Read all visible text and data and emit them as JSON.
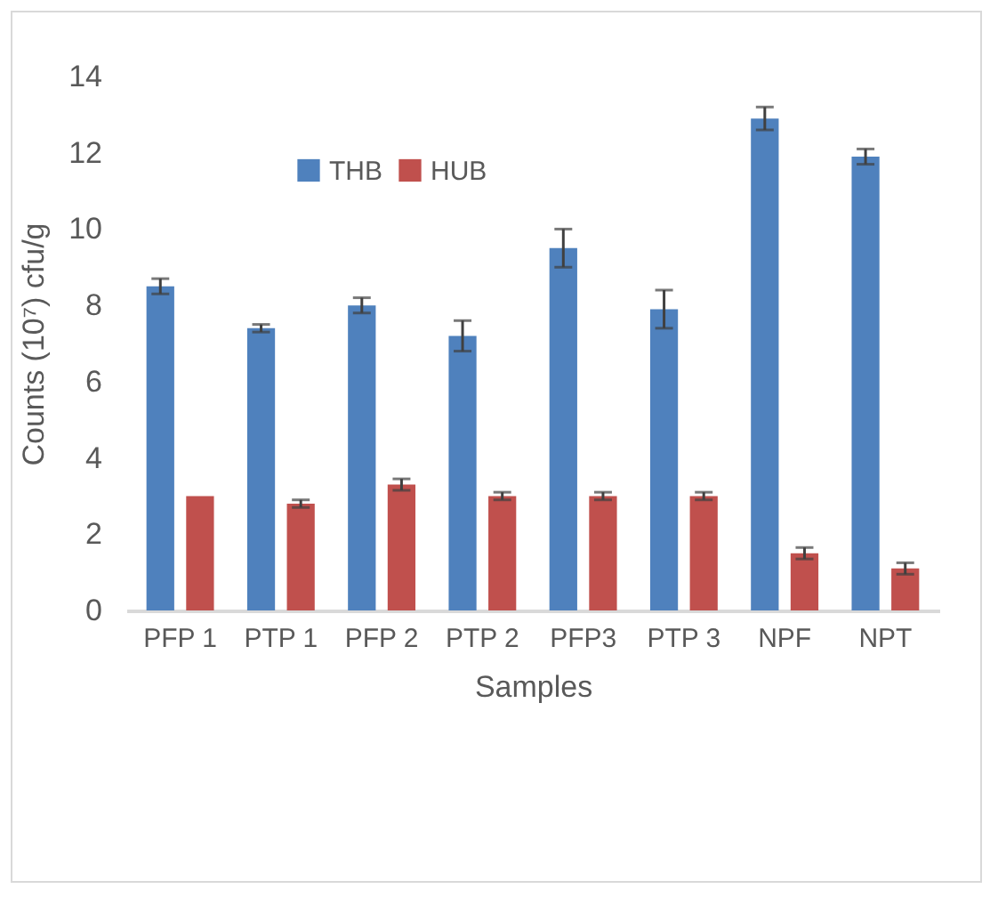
{
  "chart_data": {
    "type": "bar",
    "xlabel": "Samples",
    "ylabel": "Counts (10⁷) cfu/g",
    "categories": [
      "PFP 1",
      "PTP 1",
      "PFP 2",
      "PTP 2",
      "PFP3",
      "PTP 3",
      "NPF",
      "NPT"
    ],
    "series": [
      {
        "name": "THB",
        "color": "#4f81bd",
        "values": [
          8.5,
          7.4,
          8.0,
          7.2,
          9.5,
          7.9,
          12.9,
          11.9
        ],
        "errors": [
          0.2,
          0.1,
          0.2,
          0.4,
          0.5,
          0.5,
          0.3,
          0.2
        ]
      },
      {
        "name": "HUB",
        "color": "#c0504d",
        "values": [
          3.0,
          2.8,
          3.3,
          3.0,
          3.0,
          3.0,
          1.5,
          1.1
        ],
        "errors": [
          null,
          0.1,
          0.15,
          0.1,
          0.1,
          0.1,
          0.15,
          0.15
        ]
      }
    ],
    "ylim": [
      0,
      14
    ],
    "yticks": [
      0,
      2,
      4,
      6,
      8,
      10,
      12,
      14
    ],
    "grid": false,
    "legend": "top left"
  }
}
